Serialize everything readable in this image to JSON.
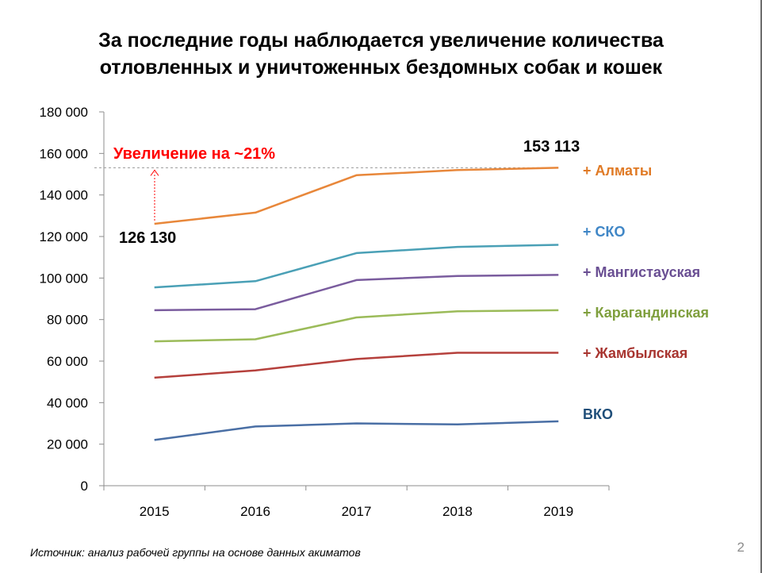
{
  "slide": {
    "title_line1": "За последние годы наблюдается увеличение количества",
    "title_line2": "отловленных и уничтоженных бездомных собак и кошек",
    "source": "Источник: анализ рабочей группы на основе данных акиматов",
    "page_number": "2"
  },
  "chart_data": {
    "type": "line",
    "categories": [
      "2015",
      "2016",
      "2017",
      "2018",
      "2019"
    ],
    "ylim": [
      0,
      180000
    ],
    "yticks": [
      0,
      20000,
      40000,
      60000,
      80000,
      100000,
      120000,
      140000,
      160000,
      180000
    ],
    "ytick_labels": [
      "0",
      "20 000",
      "40 000",
      "60 000",
      "80 000",
      "100 000",
      "120 000",
      "140 000",
      "160 000",
      "180 000"
    ],
    "grid": false,
    "series": [
      {
        "name": "+ Алматы",
        "color": "#e8873a",
        "label_color": "#e07a25",
        "values": [
          126130,
          131500,
          149500,
          152000,
          153113
        ]
      },
      {
        "name": "+ СКО",
        "color": "#4aa0b6",
        "label_color": "#3f86c6",
        "values": [
          95500,
          98500,
          112000,
          115000,
          116000
        ]
      },
      {
        "name": "+ Мангистауская",
        "color": "#7a5c9e",
        "label_color": "#6a4f93",
        "values": [
          84500,
          85000,
          99000,
          101000,
          101500
        ]
      },
      {
        "name": "+ Карагандинская",
        "color": "#9bbb59",
        "label_color": "#7f9f3d",
        "values": [
          69500,
          70500,
          81000,
          84000,
          84500
        ]
      },
      {
        "name": "+ Жамбылская",
        "color": "#b5403c",
        "label_color": "#a83530",
        "values": [
          52000,
          55500,
          61000,
          64000,
          64000
        ]
      },
      {
        "name": "ВКО",
        "color": "#4a6fa5",
        "label_color": "#1f4e79",
        "values": [
          22000,
          28500,
          30000,
          29500,
          31000
        ]
      }
    ],
    "annotations": {
      "increase_label": "Увеличение на ~21%",
      "increase_color": "#ff0000",
      "start_value_label": "126 130",
      "end_value_label": "153 113"
    }
  }
}
